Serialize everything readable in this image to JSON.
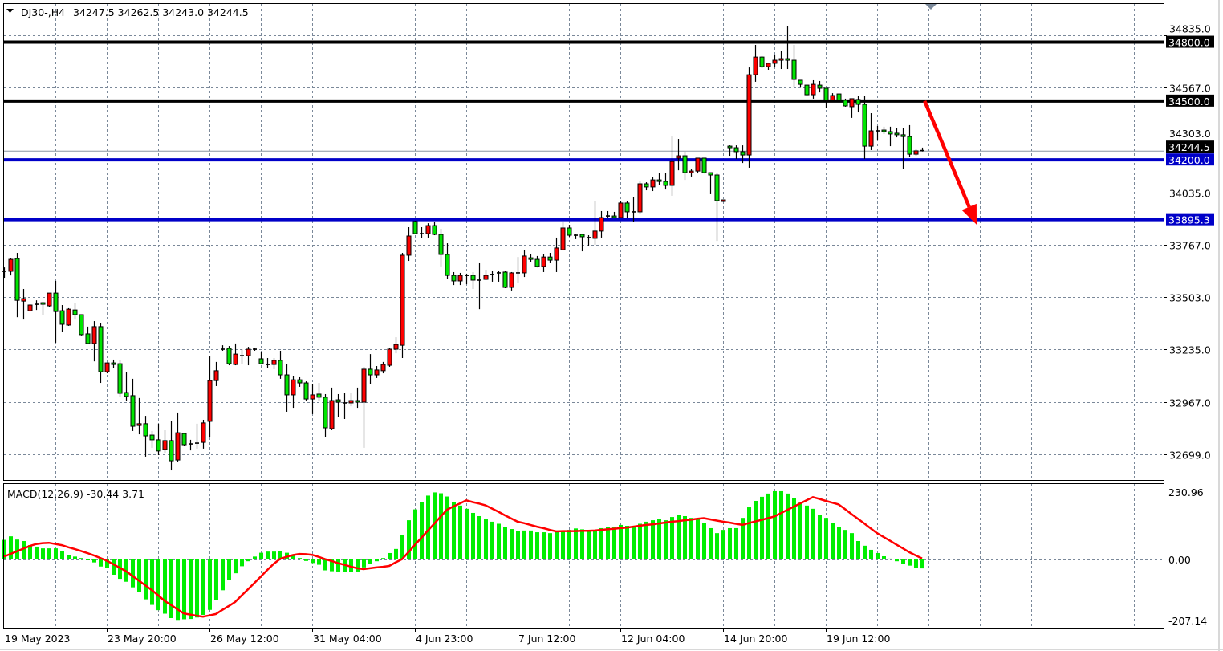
{
  "header": {
    "symbol_timeframe": "DJ30-,H4",
    "ohlc_text": "34247.5 34262.5 34243.0 34244.5"
  },
  "macd_header": {
    "label": "MACD(12,26,9) -30.44 3.71"
  },
  "colors": {
    "up_candle": "#ff0000",
    "down_candle": "#00e600",
    "doji": "#000000",
    "grid": "#7a8899",
    "histogram": "#00ee00",
    "signal": "#ff0000",
    "resistance": "#000000",
    "support": "#0000c8",
    "arrow": "#ff0000",
    "current_price_line": "#8a96a3"
  },
  "chart_data": [
    {
      "type": "candlestick",
      "symbol": "DJ30-",
      "timeframe": "H4",
      "ylim": [
        32560,
        34880
      ],
      "price_ticks": [
        "34835.0",
        "34567.0",
        "34303.0",
        "34035.0",
        "33767.0",
        "33503.0",
        "33235.0",
        "32967.0",
        "32699.0"
      ],
      "time_labels": [
        "19 May 2023",
        "23 May 20:00",
        "26 May 12:00",
        "31 May 04:00",
        "4 Jun 23:00",
        "7 Jun 12:00",
        "12 Jun 04:00",
        "14 Jun 20:00",
        "19 Jun 12:00"
      ],
      "grid": true,
      "ohlc": [
        [
          33632,
          33652,
          33599,
          33632
        ],
        [
          33632,
          33701,
          33611,
          33693
        ],
        [
          33697,
          33726,
          33398,
          33484
        ],
        [
          33480,
          33542,
          33386,
          33493
        ],
        [
          33431,
          33464,
          33427,
          33460
        ],
        [
          33464,
          33484,
          33435,
          33464
        ],
        [
          33472,
          33476,
          33407,
          33464
        ],
        [
          33456,
          33521,
          33448,
          33521
        ],
        [
          33521,
          33583,
          33268,
          33427
        ],
        [
          33431,
          33460,
          33321,
          33362
        ],
        [
          33358,
          33444,
          33354,
          33439
        ],
        [
          33435,
          33472,
          33386,
          33411
        ],
        [
          33411,
          33411,
          33305,
          33309
        ],
        [
          33313,
          33350,
          33264,
          33264
        ],
        [
          33264,
          33378,
          33173,
          33350
        ],
        [
          33350,
          33370,
          33063,
          33120
        ],
        [
          33120,
          33165,
          33112,
          33165
        ],
        [
          33165,
          33182,
          33137,
          33157
        ],
        [
          33161,
          33178,
          32990,
          33010
        ],
        [
          33014,
          33120,
          32973,
          32994
        ],
        [
          32998,
          33084,
          32818,
          32842
        ],
        [
          32846,
          32986,
          32801,
          32855
        ],
        [
          32855,
          32895,
          32687,
          32793
        ],
        [
          32797,
          32818,
          32732,
          32773
        ],
        [
          32773,
          32855,
          32695,
          32716
        ],
        [
          32724,
          32822,
          32707,
          32769
        ],
        [
          32769,
          32867,
          32617,
          32666
        ],
        [
          32670,
          32912,
          32662,
          32809
        ],
        [
          32805,
          32809,
          32744,
          32748
        ],
        [
          32752,
          32773,
          32719,
          32752
        ],
        [
          32756,
          32855,
          32728,
          32756
        ],
        [
          32760,
          32875,
          32728,
          32859
        ],
        [
          32867,
          33198,
          32785,
          33075
        ],
        [
          33075,
          33170,
          33047,
          33125
        ],
        [
          33235,
          33255,
          33227,
          33235
        ],
        [
          33239,
          33251,
          33153,
          33161
        ],
        [
          33157,
          33264,
          33153,
          33210
        ],
        [
          33202,
          33235,
          33157,
          33202
        ],
        [
          33202,
          33247,
          33153,
          33235
        ],
        [
          33235,
          33239,
          33227,
          33235
        ],
        [
          33186,
          33223,
          33157,
          33161
        ],
        [
          33157,
          33190,
          33137,
          33157
        ],
        [
          33157,
          33190,
          33133,
          33178
        ],
        [
          33178,
          33227,
          33084,
          33104
        ],
        [
          33104,
          33161,
          32916,
          33002
        ],
        [
          33002,
          33100,
          32936,
          33079
        ],
        [
          33079,
          33092,
          33043,
          33063
        ],
        [
          33063,
          33071,
          32969,
          32981
        ],
        [
          32981,
          33055,
          32904,
          33002
        ],
        [
          33006,
          33063,
          32973,
          32990
        ],
        [
          32990,
          33006,
          32789,
          32834
        ],
        [
          32830,
          33039,
          32822,
          32973
        ],
        [
          32977,
          33006,
          32891,
          32965
        ],
        [
          32961,
          33010,
          32879,
          32961
        ],
        [
          32961,
          33010,
          32944,
          32973
        ],
        [
          32973,
          33039,
          32936,
          32965
        ],
        [
          32965,
          33145,
          32732,
          33133
        ],
        [
          33133,
          33210,
          33055,
          33104
        ],
        [
          33104,
          33149,
          33088,
          33129
        ],
        [
          33125,
          33170,
          33112,
          33157
        ],
        [
          33153,
          33239,
          33145,
          33235
        ],
        [
          33235,
          33296,
          33214,
          33259
        ],
        [
          33255,
          33726,
          33190,
          33714
        ],
        [
          33714,
          33857,
          33685,
          33812
        ],
        [
          33886,
          33890,
          33824,
          33824
        ],
        [
          33824,
          33857,
          33800,
          33824
        ],
        [
          33824,
          33877,
          33804,
          33865
        ],
        [
          33865,
          33882,
          33816,
          33820
        ],
        [
          33820,
          33849,
          33657,
          33718
        ],
        [
          33718,
          33775,
          33591,
          33611
        ],
        [
          33611,
          33628,
          33562,
          33583
        ],
        [
          33583,
          33624,
          33562,
          33611
        ],
        [
          33611,
          33620,
          33566,
          33611
        ],
        [
          33611,
          33628,
          33542,
          33587
        ],
        [
          33587,
          33673,
          33439,
          33587
        ],
        [
          33591,
          33640,
          33587,
          33611
        ],
        [
          33616,
          33636,
          33579,
          33616
        ],
        [
          33624,
          33636,
          33579,
          33624
        ],
        [
          33628,
          33636,
          33546,
          33550
        ],
        [
          33550,
          33628,
          33534,
          33624
        ],
        [
          33624,
          33705,
          33575,
          33624
        ],
        [
          33624,
          33742,
          33603,
          33710
        ],
        [
          33701,
          33722,
          33681,
          33693
        ],
        [
          33693,
          33710,
          33652,
          33657
        ],
        [
          33657,
          33722,
          33628,
          33705
        ],
        [
          33705,
          33726,
          33673,
          33689
        ],
        [
          33689,
          33804,
          33628,
          33751
        ],
        [
          33742,
          33886,
          33742,
          33853
        ],
        [
          33853,
          33869,
          33808,
          33816
        ],
        [
          33816,
          33820,
          33796,
          33816
        ],
        [
          33820,
          33820,
          33734,
          33808
        ],
        [
          33804,
          33816,
          33763,
          33804
        ],
        [
          33800,
          33992,
          33767,
          33837
        ],
        [
          33837,
          33939,
          33804,
          33906
        ],
        [
          33914,
          33939,
          33902,
          33914
        ],
        [
          33914,
          33935,
          33902,
          33906
        ],
        [
          33906,
          33992,
          33902,
          33980
        ],
        [
          33980,
          33992,
          33902,
          33935
        ],
        [
          33935,
          34012,
          33882,
          33935
        ],
        [
          33935,
          34090,
          33927,
          34078
        ],
        [
          34078,
          34086,
          34045,
          34062
        ],
        [
          34062,
          34111,
          34041,
          34098
        ],
        [
          34098,
          34135,
          34074,
          34090
        ],
        [
          34090,
          34135,
          34049,
          34070
        ],
        [
          34070,
          34319,
          34017,
          34192
        ],
        [
          34209,
          34307,
          34147,
          34221
        ],
        [
          34221,
          34242,
          34098,
          34135
        ],
        [
          34135,
          34152,
          34115,
          34143
        ],
        [
          34143,
          34209,
          34131,
          34209
        ],
        [
          34209,
          34209,
          34131,
          34135
        ],
        [
          34135,
          34135,
          34025,
          34123
        ],
        [
          34123,
          34135,
          33787,
          33992
        ],
        [
          33988,
          33996,
          33988,
          33996
        ],
        [
          34270,
          34274,
          34221,
          34262
        ],
        [
          34262,
          34274,
          34205,
          34242
        ],
        [
          34242,
          34274,
          34184,
          34225
        ],
        [
          34225,
          34671,
          34160,
          34634
        ],
        [
          34634,
          34786,
          34598,
          34724
        ],
        [
          34724,
          34729,
          34667,
          34675
        ],
        [
          34675,
          34692,
          34659,
          34692
        ],
        [
          34692,
          34733,
          34671,
          34708
        ],
        [
          34708,
          34757,
          34663,
          34716
        ],
        [
          34716,
          34880,
          34663,
          34708
        ],
        [
          34708,
          34786,
          34573,
          34610
        ],
        [
          34606,
          34606,
          34569,
          34585
        ],
        [
          34581,
          34581,
          34524,
          34532
        ],
        [
          34532,
          34606,
          34512,
          34585
        ],
        [
          34581,
          34602,
          34544,
          34565
        ],
        [
          34565,
          34565,
          34463,
          34504
        ],
        [
          34504,
          34540,
          34504,
          34528
        ],
        [
          34536,
          34536,
          34504,
          34504
        ],
        [
          34504,
          34512,
          34471,
          34475
        ],
        [
          34471,
          34512,
          34414,
          34512
        ],
        [
          34508,
          34524,
          34442,
          34483
        ],
        [
          34483,
          34524,
          34205,
          34270
        ],
        [
          34270,
          34438,
          34250,
          34348
        ],
        [
          34348,
          34373,
          34299,
          34348
        ],
        [
          34352,
          34369,
          34332,
          34344
        ],
        [
          34344,
          34369,
          34270,
          34332
        ],
        [
          34336,
          34364,
          34315,
          34328
        ],
        [
          34328,
          34364,
          34152,
          34319
        ],
        [
          34319,
          34377,
          34213,
          34229
        ],
        [
          34229,
          34258,
          34221,
          34246
        ],
        [
          34247.5,
          34262.5,
          34243.0,
          34244.5
        ]
      ],
      "current_price": {
        "value": 34244.5,
        "label": "34244.5"
      },
      "horizontal_levels": [
        {
          "value": 34800.0,
          "label": "34800.0",
          "kind": "resistance"
        },
        {
          "value": 34500.0,
          "label": "34500.0",
          "kind": "resistance"
        },
        {
          "value": 34200.0,
          "label": "34200.0",
          "kind": "support"
        },
        {
          "value": 33895.3,
          "label": "33895.3",
          "kind": "support"
        }
      ],
      "arrow": {
        "from": {
          "bar": 143.4,
          "price": 34500
        },
        "to": {
          "bar": 151.5,
          "price": 33870
        },
        "direction": "down"
      }
    },
    {
      "type": "bar+line",
      "indicator": "MACD(12,26,9)",
      "ylim": [
        -207.14,
        230.96
      ],
      "tick_labels": [
        "230.96",
        "0.00",
        "-207.14"
      ],
      "main_value": -30.44,
      "signal_value": 3.71,
      "histogram": [
        67,
        79,
        68,
        63,
        49,
        44,
        38,
        38,
        38,
        30,
        16,
        10,
        5,
        -2,
        -10,
        -24,
        -29,
        -52,
        -66,
        -76,
        -95,
        -110,
        -136,
        -155,
        -173,
        -185,
        -200,
        -209,
        -204,
        -203,
        -198,
        -189,
        -172,
        -138,
        -105,
        -69,
        -47,
        -23,
        -6,
        10,
        23,
        27,
        27,
        30,
        23,
        14,
        5,
        -5,
        -12,
        -18,
        -37,
        -40,
        -41,
        -43,
        -43,
        -41,
        -27,
        -15,
        -6,
        5,
        22,
        36,
        85,
        134,
        171,
        197,
        218,
        229,
        226,
        215,
        197,
        184,
        173,
        159,
        148,
        137,
        129,
        122,
        110,
        104,
        96,
        99,
        99,
        93,
        93,
        90,
        99,
        99,
        101,
        106,
        103,
        96,
        96,
        107,
        110,
        112,
        118,
        115,
        115,
        122,
        129,
        134,
        137,
        134,
        145,
        151,
        148,
        142,
        140,
        126,
        107,
        90,
        101,
        107,
        107,
        142,
        178,
        200,
        214,
        225,
        233,
        233,
        225,
        211,
        194,
        184,
        173,
        153,
        142,
        126,
        112,
        101,
        90,
        63,
        47,
        33,
        22,
        11,
        3,
        -6,
        -14,
        -21,
        -29,
        -30.44
      ],
      "signal": [
        10,
        19,
        28,
        37,
        46,
        53,
        56,
        57,
        53,
        49,
        42,
        36,
        29,
        22,
        14,
        5,
        -4,
        -16,
        -28,
        -40,
        -56,
        -72,
        -88,
        -104,
        -122,
        -141,
        -155,
        -170,
        -184,
        -188,
        -192,
        -195,
        -191,
        -186,
        -172,
        -159,
        -145,
        -123,
        -102,
        -80,
        -58,
        -36,
        -15,
        2,
        9,
        15,
        19,
        18,
        16,
        9,
        1,
        -5,
        -12,
        -18,
        -24,
        -30,
        -33,
        -30,
        -27,
        -25,
        -22,
        -10,
        1,
        25,
        50,
        74,
        98,
        122,
        146,
        170,
        181,
        191,
        202,
        196,
        191,
        185,
        174,
        163,
        151,
        140,
        129,
        124,
        118,
        112,
        107,
        101,
        96,
        97,
        97,
        97,
        98,
        98,
        99,
        101,
        103,
        105,
        107,
        109,
        112,
        115,
        118,
        120,
        123,
        126,
        129,
        131,
        134,
        136,
        139,
        141,
        137,
        133,
        129,
        126,
        122,
        118,
        124,
        130,
        135,
        141,
        147,
        158,
        169,
        180,
        191,
        202,
        213,
        207,
        200,
        194,
        188,
        172,
        155,
        139,
        123,
        106,
        90,
        77,
        64,
        51,
        38,
        25,
        14,
        3.71
      ]
    }
  ]
}
